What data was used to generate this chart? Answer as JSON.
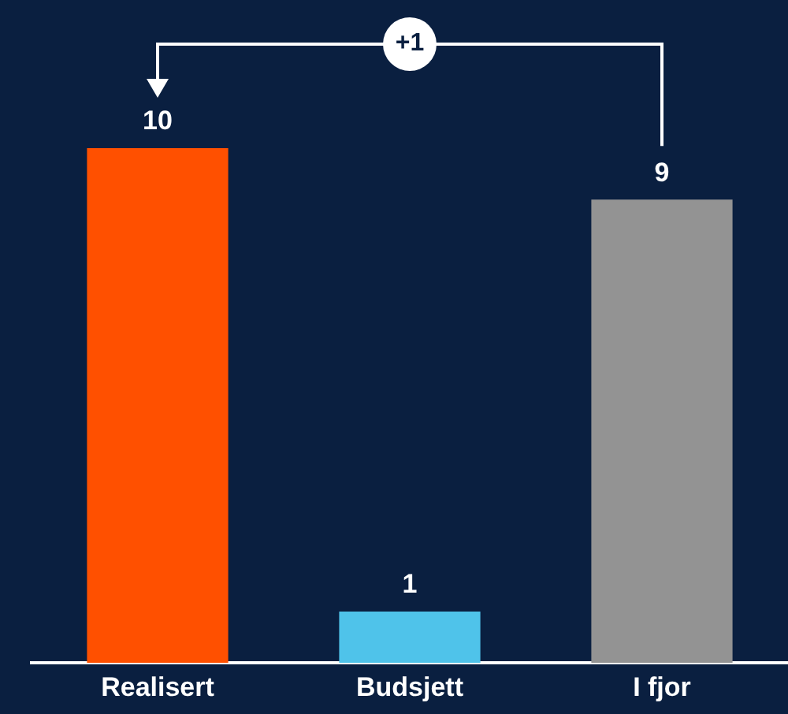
{
  "chart_data": {
    "type": "bar",
    "categories": [
      "Realisert",
      "Budsjett",
      "I fjor"
    ],
    "values": [
      10,
      1,
      9
    ],
    "colors": [
      "#ff5000",
      "#4fc3ea",
      "#939393"
    ],
    "data_labels": true,
    "annotations": [
      "+1"
    ],
    "grid": false,
    "legend": false
  }
}
